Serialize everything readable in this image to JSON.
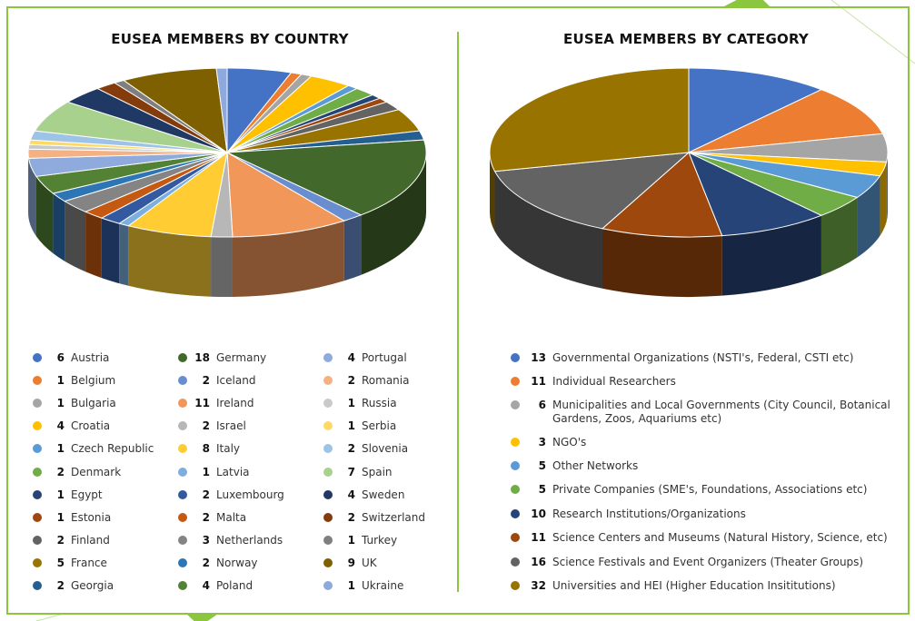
{
  "colors": {
    "frame": "#8cc63f",
    "divider": "#8cc63f",
    "title": "#111111"
  },
  "chart_data": [
    {
      "type": "pie",
      "title": "EUSEA MEMBERS BY COUNTRY",
      "categories": [
        "Austria",
        "Belgium",
        "Bulgaria",
        "Croatia",
        "Czech Republic",
        "Denmark",
        "Egypt",
        "Estonia",
        "Finland",
        "France",
        "Georgia",
        "Germany",
        "Iceland",
        "Ireland",
        "Israel",
        "Italy",
        "Latvia",
        "Luxembourg",
        "Malta",
        "Netherlands",
        "Norway",
        "Poland",
        "Portugal",
        "Romania",
        "Russia",
        "Serbia",
        "Slovenia",
        "Spain",
        "Sweden",
        "Switzerland",
        "Turkey",
        "UK",
        "Ukraine"
      ],
      "values": [
        6,
        1,
        1,
        4,
        1,
        2,
        1,
        1,
        2,
        5,
        2,
        18,
        2,
        11,
        2,
        8,
        1,
        2,
        2,
        3,
        2,
        4,
        4,
        2,
        1,
        1,
        2,
        7,
        4,
        2,
        1,
        9,
        1
      ],
      "colors": [
        "#4472c4",
        "#ed7d31",
        "#a5a5a5",
        "#ffc000",
        "#5b9bd5",
        "#70ad47",
        "#264478",
        "#9e480e",
        "#636363",
        "#997300",
        "#255e91",
        "#43682b",
        "#698ed0",
        "#f1975a",
        "#b7b7b7",
        "#ffcd33",
        "#7cafdd",
        "#335aa1",
        "#c65911",
        "#848484",
        "#2e75b6",
        "#548235",
        "#8faadc",
        "#f4b183",
        "#c9c9c9",
        "#ffd966",
        "#9dc3e6",
        "#a9d18e",
        "#203864",
        "#843c0c",
        "#7f7f7f",
        "#7f6000",
        "#8ea9db"
      ],
      "legend_columns": 3
    },
    {
      "type": "pie",
      "title": "EUSEA MEMBERS BY CATEGORY",
      "categories": [
        "Governmental Organizations (NSTI's, Federal, CSTI etc)",
        "Individual Researchers",
        "Municipalities and Local Governments (City Council, Botanical Gardens, Zoos, Aquariums etc)",
        "NGO's",
        "Other Networks",
        "Private Companies (SME's, Foundations, Associations etc)",
        "Research Institutions/Organizations",
        "Science Centers and Museums (Natural History, Science, etc)",
        "Science Festivals and Event Organizers (Theater Groups)",
        "Universities and HEI (Higher Education Insititutions)"
      ],
      "values": [
        13,
        11,
        6,
        3,
        5,
        5,
        10,
        11,
        16,
        32
      ],
      "colors": [
        "#4472c4",
        "#ed7d31",
        "#a5a5a5",
        "#ffc000",
        "#5b9bd5",
        "#70ad47",
        "#264478",
        "#9e480e",
        "#636363",
        "#997300"
      ]
    }
  ]
}
